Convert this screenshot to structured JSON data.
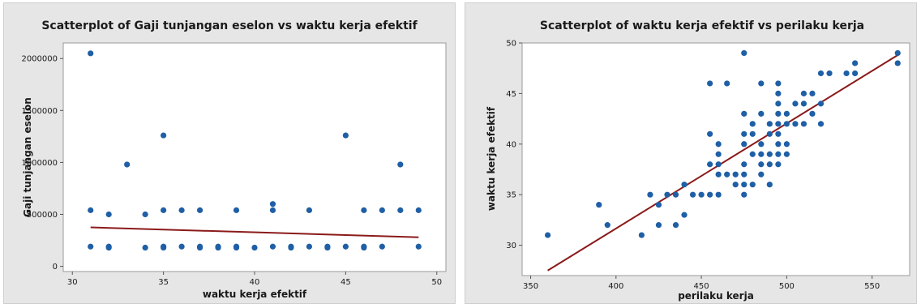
{
  "chart_data": [
    {
      "type": "scatter",
      "title": "Scatterplot of Gaji tunjangan eselon vs waktu kerja efektif",
      "xlabel": "waktu kerja efektif",
      "ylabel": "Gaji tunjangan eselon",
      "xlim": [
        29.5,
        50.5
      ],
      "ylim": [
        -50000,
        2150000
      ],
      "xticks": [
        30,
        35,
        40,
        45,
        50
      ],
      "yticks": [
        0,
        500000,
        1000000,
        1500000,
        2000000
      ],
      "grid": false,
      "point_color": "#1f5fa6",
      "line_color": "#8b1a1a",
      "fit_line": {
        "x": [
          31,
          49
        ],
        "y": [
          375000,
          280000
        ]
      },
      "points": [
        [
          31,
          2050000
        ],
        [
          31,
          540000
        ],
        [
          31,
          190000
        ],
        [
          32,
          500000
        ],
        [
          32,
          190000
        ],
        [
          32,
          180000
        ],
        [
          33,
          980000
        ],
        [
          34,
          500000
        ],
        [
          34,
          180000
        ],
        [
          35,
          1260000
        ],
        [
          35,
          540000
        ],
        [
          35,
          190000
        ],
        [
          35,
          180000
        ],
        [
          36,
          540000
        ],
        [
          36,
          190000
        ],
        [
          37,
          540000
        ],
        [
          37,
          190000
        ],
        [
          37,
          180000
        ],
        [
          38,
          190000
        ],
        [
          38,
          180000
        ],
        [
          39,
          540000
        ],
        [
          39,
          190000
        ],
        [
          39,
          180000
        ],
        [
          40,
          180000
        ],
        [
          41,
          600000
        ],
        [
          41,
          540000
        ],
        [
          41,
          190000
        ],
        [
          42,
          190000
        ],
        [
          42,
          180000
        ],
        [
          43,
          540000
        ],
        [
          43,
          190000
        ],
        [
          44,
          190000
        ],
        [
          44,
          180000
        ],
        [
          45,
          1260000
        ],
        [
          45,
          190000
        ],
        [
          46,
          540000
        ],
        [
          46,
          190000
        ],
        [
          46,
          180000
        ],
        [
          47,
          540000
        ],
        [
          47,
          190000
        ],
        [
          48,
          980000
        ],
        [
          48,
          540000
        ],
        [
          49,
          540000
        ],
        [
          49,
          190000
        ]
      ]
    },
    {
      "type": "scatter",
      "title": "Scatterplot of waktu kerja efektif vs perilaku kerja",
      "xlabel": "perilaku kerja",
      "ylabel": "waktu kerja efektif",
      "xlim": [
        345,
        572
      ],
      "ylim": [
        27,
        50
      ],
      "xticks": [
        350,
        400,
        450,
        500,
        550
      ],
      "yticks": [
        30,
        35,
        40,
        45,
        50
      ],
      "grid": false,
      "point_color": "#1f5fa6",
      "line_color": "#8b1a1a",
      "fit_line": {
        "x": [
          360,
          565
        ],
        "y": [
          27.5,
          48.8
        ]
      },
      "points": [
        [
          360,
          31
        ],
        [
          390,
          34
        ],
        [
          395,
          32
        ],
        [
          415,
          31
        ],
        [
          420,
          35
        ],
        [
          425,
          34
        ],
        [
          425,
          32
        ],
        [
          430,
          35
        ],
        [
          435,
          35
        ],
        [
          435,
          32
        ],
        [
          440,
          36
        ],
        [
          440,
          33
        ],
        [
          445,
          35
        ],
        [
          450,
          35
        ],
        [
          455,
          46
        ],
        [
          455,
          41
        ],
        [
          455,
          38
        ],
        [
          455,
          35
        ],
        [
          460,
          40
        ],
        [
          460,
          39
        ],
        [
          460,
          38
        ],
        [
          460,
          37
        ],
        [
          460,
          35
        ],
        [
          465,
          46
        ],
        [
          465,
          37
        ],
        [
          470,
          37
        ],
        [
          470,
          36
        ],
        [
          475,
          49
        ],
        [
          475,
          43
        ],
        [
          475,
          41
        ],
        [
          475,
          40
        ],
        [
          475,
          38
        ],
        [
          475,
          37
        ],
        [
          475,
          36
        ],
        [
          475,
          35
        ],
        [
          480,
          42
        ],
        [
          480,
          41
        ],
        [
          480,
          39
        ],
        [
          480,
          36
        ],
        [
          485,
          46
        ],
        [
          485,
          43
        ],
        [
          485,
          40
        ],
        [
          485,
          39
        ],
        [
          485,
          38
        ],
        [
          485,
          37
        ],
        [
          490,
          42
        ],
        [
          490,
          41
        ],
        [
          490,
          39
        ],
        [
          490,
          38
        ],
        [
          490,
          36
        ],
        [
          495,
          46
        ],
        [
          495,
          45
        ],
        [
          495,
          44
        ],
        [
          495,
          43
        ],
        [
          495,
          42
        ],
        [
          495,
          41
        ],
        [
          495,
          40
        ],
        [
          495,
          39
        ],
        [
          495,
          38
        ],
        [
          500,
          43
        ],
        [
          500,
          42
        ],
        [
          500,
          40
        ],
        [
          500,
          39
        ],
        [
          505,
          44
        ],
        [
          505,
          42
        ],
        [
          510,
          45
        ],
        [
          510,
          44
        ],
        [
          510,
          42
        ],
        [
          515,
          45
        ],
        [
          515,
          43
        ],
        [
          520,
          47
        ],
        [
          520,
          44
        ],
        [
          520,
          42
        ],
        [
          525,
          47
        ],
        [
          535,
          47
        ],
        [
          540,
          48
        ],
        [
          540,
          47
        ],
        [
          565,
          49
        ],
        [
          565,
          48
        ]
      ]
    }
  ]
}
